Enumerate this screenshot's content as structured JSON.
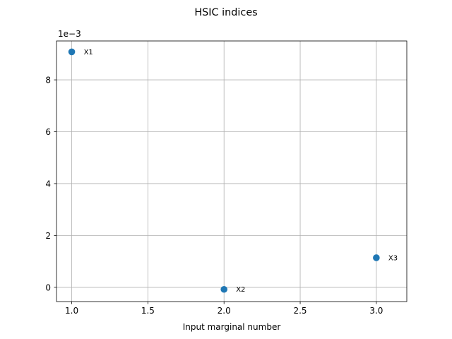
{
  "chart_data": {
    "type": "scatter",
    "title": "HSIC indices",
    "xlabel": "Input marginal number",
    "ylabel": "",
    "y_multiplier_label": "1e−3",
    "xlim": [
      0.9,
      3.2
    ],
    "ylim": [
      -0.55,
      9.5
    ],
    "y_scale_factor": 0.001,
    "x_ticks": [
      1.0,
      1.5,
      2.0,
      2.5,
      3.0
    ],
    "x_tick_labels": [
      "1.0",
      "1.5",
      "2.0",
      "2.5",
      "3.0"
    ],
    "y_ticks": [
      0,
      2,
      4,
      6,
      8
    ],
    "y_tick_labels": [
      "0",
      "2",
      "4",
      "6",
      "8"
    ],
    "grid": true,
    "points": [
      {
        "x": 1.0,
        "y": 9.08,
        "label": "X1"
      },
      {
        "x": 2.0,
        "y": -0.08,
        "label": "X2"
      },
      {
        "x": 3.0,
        "y": 1.14,
        "label": "X3"
      }
    ],
    "colors": {
      "marker": "#1f77b4",
      "grid": "#b0b0b0",
      "axes": "#000000"
    }
  }
}
